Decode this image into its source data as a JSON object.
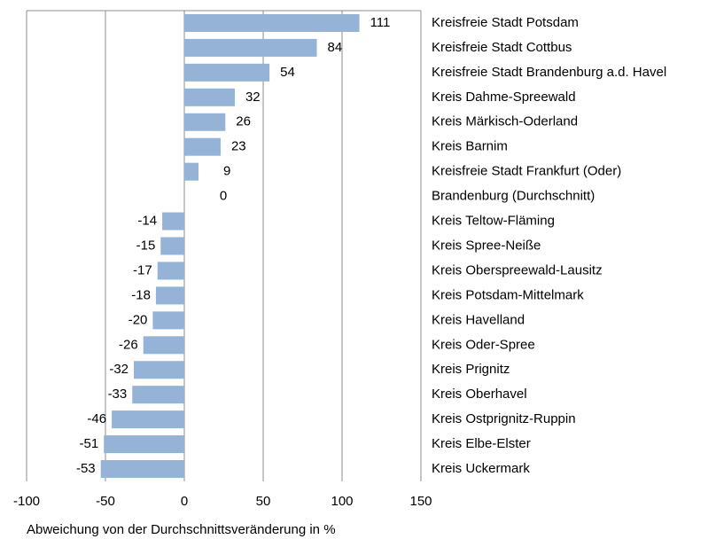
{
  "chart_data": {
    "type": "bar",
    "orientation": "horizontal",
    "x_label": "Abweichung von der Durchschnittsveränderung in %",
    "categories": [
      "Kreisfreie Stadt Potsdam",
      "Kreisfreie Stadt Cottbus",
      "Kreisfreie Stadt Brandenburg a.d. Havel",
      "Kreis Dahme-Spreewald",
      "Kreis Märkisch-Oderland",
      "Kreis Barnim",
      "Kreisfreie Stadt Frankfurt (Oder)",
      "Brandenburg (Durchschnitt)",
      "Kreis Teltow-Fläming",
      "Kreis Spree-Neiße",
      "Kreis Oberspreewald-Lausitz",
      "Kreis Potsdam-Mittelmark",
      "Kreis Havelland",
      "Kreis Oder-Spree",
      "Kreis Prignitz",
      "Kreis Oberhavel",
      "Kreis Ostprignitz-Ruppin",
      "Kreis Elbe-Elster",
      "Kreis Uckermark"
    ],
    "values": [
      111,
      84,
      54,
      32,
      26,
      23,
      9,
      0,
      -14,
      -15,
      -17,
      -18,
      -20,
      -26,
      -32,
      -33,
      -46,
      -51,
      -53
    ],
    "color": "#95b3d7",
    "xlim": [
      -100,
      150
    ],
    "xticks": [
      -100,
      -50,
      0,
      50,
      100,
      150
    ],
    "grid": true
  }
}
